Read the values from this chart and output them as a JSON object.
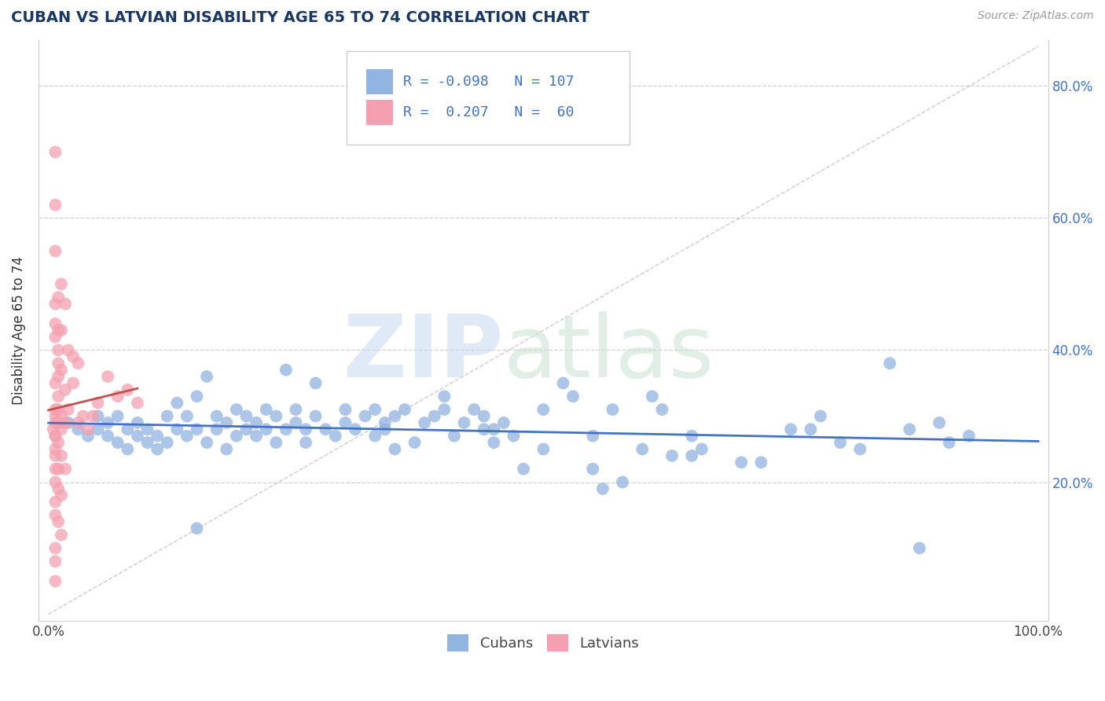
{
  "title": "CUBAN VS LATVIAN DISABILITY AGE 65 TO 74 CORRELATION CHART",
  "source": "Source: ZipAtlas.com",
  "ylabel": "Disability Age 65 to 74",
  "xlim": [
    -0.01,
    1.01
  ],
  "ylim": [
    -0.01,
    0.87
  ],
  "x_tick_left": 0.0,
  "x_tick_right": 1.0,
  "x_tick_left_label": "0.0%",
  "x_tick_right_label": "100.0%",
  "y_ticks": [
    0.2,
    0.4,
    0.6,
    0.8
  ],
  "y_tick_labels": [
    "20.0%",
    "40.0%",
    "60.0%",
    "80.0%"
  ],
  "legend_r_cuban": "-0.098",
  "legend_n_cuban": "107",
  "legend_r_latvian": "0.207",
  "legend_n_latvian": "60",
  "cuban_color": "#92b4e0",
  "latvian_color": "#f4a0b0",
  "cuban_line_color": "#4472c4",
  "latvian_line_color": "#c0504d",
  "grid_color": "#d0d0d0",
  "cuban_points": [
    [
      0.02,
      0.29
    ],
    [
      0.03,
      0.28
    ],
    [
      0.04,
      0.27
    ],
    [
      0.05,
      0.3
    ],
    [
      0.05,
      0.28
    ],
    [
      0.06,
      0.27
    ],
    [
      0.06,
      0.29
    ],
    [
      0.07,
      0.26
    ],
    [
      0.07,
      0.3
    ],
    [
      0.08,
      0.25
    ],
    [
      0.08,
      0.28
    ],
    [
      0.09,
      0.27
    ],
    [
      0.09,
      0.29
    ],
    [
      0.1,
      0.26
    ],
    [
      0.1,
      0.28
    ],
    [
      0.11,
      0.25
    ],
    [
      0.11,
      0.27
    ],
    [
      0.12,
      0.3
    ],
    [
      0.12,
      0.26
    ],
    [
      0.13,
      0.28
    ],
    [
      0.13,
      0.32
    ],
    [
      0.14,
      0.27
    ],
    [
      0.14,
      0.3
    ],
    [
      0.15,
      0.33
    ],
    [
      0.15,
      0.28
    ],
    [
      0.16,
      0.36
    ],
    [
      0.16,
      0.26
    ],
    [
      0.17,
      0.3
    ],
    [
      0.17,
      0.28
    ],
    [
      0.18,
      0.25
    ],
    [
      0.18,
      0.29
    ],
    [
      0.19,
      0.31
    ],
    [
      0.19,
      0.27
    ],
    [
      0.2,
      0.28
    ],
    [
      0.2,
      0.3
    ],
    [
      0.21,
      0.27
    ],
    [
      0.21,
      0.29
    ],
    [
      0.22,
      0.28
    ],
    [
      0.22,
      0.31
    ],
    [
      0.23,
      0.26
    ],
    [
      0.23,
      0.3
    ],
    [
      0.24,
      0.37
    ],
    [
      0.24,
      0.28
    ],
    [
      0.25,
      0.29
    ],
    [
      0.25,
      0.31
    ],
    [
      0.26,
      0.28
    ],
    [
      0.26,
      0.26
    ],
    [
      0.27,
      0.3
    ],
    [
      0.27,
      0.35
    ],
    [
      0.28,
      0.28
    ],
    [
      0.29,
      0.27
    ],
    [
      0.3,
      0.31
    ],
    [
      0.3,
      0.29
    ],
    [
      0.31,
      0.28
    ],
    [
      0.32,
      0.3
    ],
    [
      0.33,
      0.27
    ],
    [
      0.33,
      0.31
    ],
    [
      0.34,
      0.28
    ],
    [
      0.34,
      0.29
    ],
    [
      0.35,
      0.25
    ],
    [
      0.35,
      0.3
    ],
    [
      0.36,
      0.31
    ],
    [
      0.37,
      0.26
    ],
    [
      0.38,
      0.29
    ],
    [
      0.39,
      0.3
    ],
    [
      0.4,
      0.33
    ],
    [
      0.4,
      0.31
    ],
    [
      0.41,
      0.27
    ],
    [
      0.42,
      0.29
    ],
    [
      0.43,
      0.31
    ],
    [
      0.44,
      0.28
    ],
    [
      0.44,
      0.3
    ],
    [
      0.45,
      0.28
    ],
    [
      0.45,
      0.26
    ],
    [
      0.46,
      0.29
    ],
    [
      0.47,
      0.27
    ],
    [
      0.48,
      0.22
    ],
    [
      0.5,
      0.31
    ],
    [
      0.5,
      0.25
    ],
    [
      0.52,
      0.35
    ],
    [
      0.53,
      0.33
    ],
    [
      0.55,
      0.27
    ],
    [
      0.55,
      0.22
    ],
    [
      0.56,
      0.19
    ],
    [
      0.57,
      0.31
    ],
    [
      0.58,
      0.2
    ],
    [
      0.6,
      0.25
    ],
    [
      0.61,
      0.33
    ],
    [
      0.62,
      0.31
    ],
    [
      0.63,
      0.24
    ],
    [
      0.65,
      0.27
    ],
    [
      0.65,
      0.24
    ],
    [
      0.66,
      0.25
    ],
    [
      0.7,
      0.23
    ],
    [
      0.72,
      0.23
    ],
    [
      0.75,
      0.28
    ],
    [
      0.77,
      0.28
    ],
    [
      0.78,
      0.3
    ],
    [
      0.8,
      0.26
    ],
    [
      0.82,
      0.25
    ],
    [
      0.85,
      0.38
    ],
    [
      0.87,
      0.28
    ],
    [
      0.9,
      0.29
    ],
    [
      0.91,
      0.26
    ],
    [
      0.93,
      0.27
    ],
    [
      0.15,
      0.13
    ],
    [
      0.88,
      0.1
    ]
  ],
  "latvian_points": [
    [
      0.005,
      0.28
    ],
    [
      0.007,
      0.27
    ],
    [
      0.007,
      0.3
    ],
    [
      0.007,
      0.25
    ],
    [
      0.007,
      0.29
    ],
    [
      0.007,
      0.22
    ],
    [
      0.007,
      0.31
    ],
    [
      0.007,
      0.24
    ],
    [
      0.007,
      0.27
    ],
    [
      0.007,
      0.35
    ],
    [
      0.007,
      0.42
    ],
    [
      0.007,
      0.44
    ],
    [
      0.007,
      0.1
    ],
    [
      0.007,
      0.08
    ],
    [
      0.007,
      0.05
    ],
    [
      0.007,
      0.15
    ],
    [
      0.007,
      0.2
    ],
    [
      0.007,
      0.47
    ],
    [
      0.007,
      0.17
    ],
    [
      0.007,
      0.55
    ],
    [
      0.007,
      0.62
    ],
    [
      0.007,
      0.7
    ],
    [
      0.01,
      0.29
    ],
    [
      0.01,
      0.26
    ],
    [
      0.01,
      0.31
    ],
    [
      0.01,
      0.4
    ],
    [
      0.01,
      0.43
    ],
    [
      0.01,
      0.36
    ],
    [
      0.01,
      0.38
    ],
    [
      0.01,
      0.48
    ],
    [
      0.01,
      0.33
    ],
    [
      0.01,
      0.22
    ],
    [
      0.01,
      0.19
    ],
    [
      0.01,
      0.14
    ],
    [
      0.013,
      0.28
    ],
    [
      0.013,
      0.3
    ],
    [
      0.013,
      0.37
    ],
    [
      0.013,
      0.43
    ],
    [
      0.013,
      0.5
    ],
    [
      0.013,
      0.24
    ],
    [
      0.013,
      0.18
    ],
    [
      0.013,
      0.12
    ],
    [
      0.017,
      0.29
    ],
    [
      0.017,
      0.34
    ],
    [
      0.017,
      0.47
    ],
    [
      0.017,
      0.22
    ],
    [
      0.02,
      0.31
    ],
    [
      0.02,
      0.4
    ],
    [
      0.025,
      0.35
    ],
    [
      0.025,
      0.39
    ],
    [
      0.03,
      0.29
    ],
    [
      0.03,
      0.38
    ],
    [
      0.035,
      0.3
    ],
    [
      0.04,
      0.28
    ],
    [
      0.045,
      0.3
    ],
    [
      0.05,
      0.32
    ],
    [
      0.06,
      0.36
    ],
    [
      0.07,
      0.33
    ],
    [
      0.08,
      0.34
    ],
    [
      0.09,
      0.32
    ]
  ]
}
